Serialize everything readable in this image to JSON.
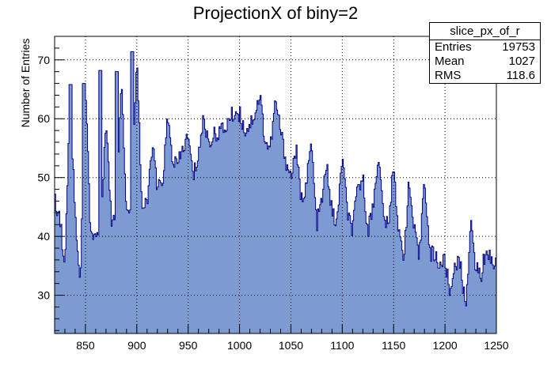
{
  "chart_data": {
    "type": "histogram",
    "title": "ProjectionX of biny=2",
    "xlabel": "",
    "ylabel": "Number of Entries",
    "xlim": [
      820,
      1250
    ],
    "ylim": [
      23.5,
      74
    ],
    "x_ticks": [
      850,
      900,
      950,
      1000,
      1050,
      1100,
      1150,
      1200,
      1250
    ],
    "y_ticks": [
      30,
      40,
      50,
      60,
      70
    ],
    "grid": true,
    "fill_color": "#7e9bd1",
    "line_color": "#00008b",
    "x": [
      820,
      825,
      830,
      835,
      840,
      845,
      850,
      855,
      860,
      865,
      870,
      875,
      880,
      885,
      890,
      895,
      900,
      905,
      910,
      915,
      920,
      925,
      930,
      935,
      940,
      945,
      950,
      955,
      960,
      965,
      970,
      975,
      980,
      985,
      990,
      995,
      1000,
      1005,
      1010,
      1015,
      1020,
      1025,
      1030,
      1035,
      1040,
      1045,
      1050,
      1055,
      1060,
      1065,
      1070,
      1075,
      1080,
      1085,
      1090,
      1095,
      1100,
      1105,
      1110,
      1115,
      1120,
      1125,
      1130,
      1135,
      1140,
      1145,
      1150,
      1155,
      1160,
      1165,
      1170,
      1175,
      1180,
      1185,
      1190,
      1195,
      1200,
      1205,
      1210,
      1215,
      1220,
      1225,
      1230,
      1235,
      1240,
      1245,
      1250
    ],
    "y": [
      46,
      44,
      34,
      65,
      44,
      32,
      66,
      41,
      40,
      41,
      61,
      43,
      43,
      68,
      44,
      45,
      72,
      45,
      45,
      56,
      48,
      49,
      60,
      53,
      52,
      55,
      57,
      50,
      54,
      60,
      56,
      57,
      58,
      58,
      60,
      61,
      61,
      58,
      59,
      61,
      64,
      56,
      55,
      63,
      58,
      53,
      50,
      55,
      46,
      49,
      56,
      42,
      46,
      52,
      44,
      42,
      54,
      44,
      41,
      48,
      50,
      41,
      45,
      54,
      44,
      41,
      53,
      40,
      37,
      49,
      41,
      36,
      51,
      37,
      37,
      35,
      36,
      30,
      36,
      35,
      28,
      42,
      35,
      33,
      38,
      36,
      35
    ],
    "peaks": [
      {
        "x": 835,
        "y": 65.8
      },
      {
        "x": 848,
        "y": 66
      },
      {
        "x": 864,
        "y": 68.2
      },
      {
        "x": 880,
        "y": 68
      },
      {
        "x": 895,
        "y": 71.4
      }
    ],
    "stats": {
      "name": "slice_px_of_r",
      "entries_label": "Entries",
      "entries": "19753",
      "mean_label": "Mean",
      "mean": "1027",
      "rms_label": "RMS",
      "rms": "118.6"
    }
  }
}
